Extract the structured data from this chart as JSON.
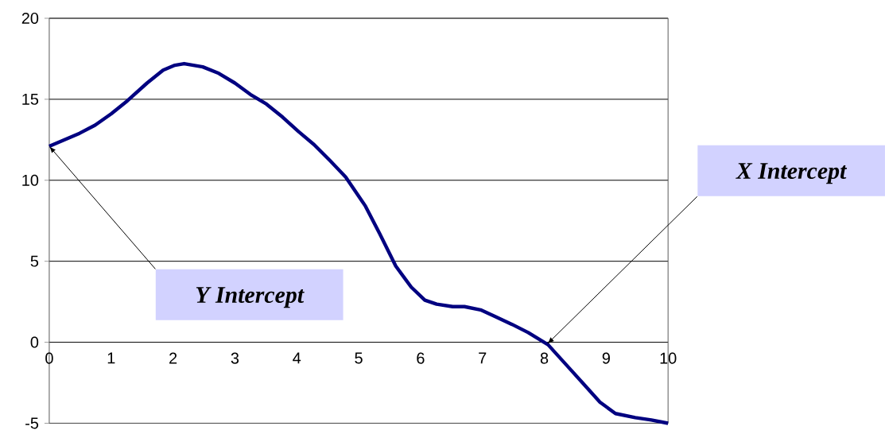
{
  "chart_data": {
    "type": "line",
    "x": [
      0,
      0.49,
      0.74,
      1.0,
      1.26,
      1.58,
      1.84,
      2.03,
      2.18,
      2.48,
      2.74,
      3.0,
      3.25,
      3.51,
      3.77,
      4.03,
      4.28,
      4.54,
      4.79,
      5.11,
      5.34,
      5.6,
      5.85,
      6.07,
      6.26,
      6.52,
      6.71,
      6.97,
      7.2,
      7.48,
      7.74,
      8.06,
      8.38,
      8.64,
      8.9,
      9.15,
      9.47,
      9.73,
      10
    ],
    "series": [
      {
        "color": "#000080",
        "values": [
          12.1,
          12.9,
          13.4,
          14.1,
          14.9,
          16.0,
          16.8,
          17.1,
          17.2,
          17.0,
          16.6,
          16.0,
          15.3,
          14.7,
          13.9,
          13.0,
          12.2,
          11.2,
          10.2,
          8.4,
          6.7,
          4.7,
          3.4,
          2.6,
          2.35,
          2.2,
          2.2,
          2.0,
          1.6,
          1.1,
          0.6,
          -0.15,
          -1.5,
          -2.6,
          -3.7,
          -4.4,
          -4.65,
          -4.8,
          -5.0
        ]
      }
    ],
    "xlim": [
      0,
      10
    ],
    "xticks": [
      0,
      1,
      2,
      3,
      4,
      5,
      6,
      7,
      8,
      9,
      10
    ],
    "ylim": [
      -5,
      20
    ],
    "yticks": [
      -5,
      0,
      5,
      10,
      15,
      20
    ],
    "grid": "y",
    "marker": "none",
    "line_style": "solid",
    "annotations": [
      "Y Intercept",
      "X Intercept"
    ]
  }
}
